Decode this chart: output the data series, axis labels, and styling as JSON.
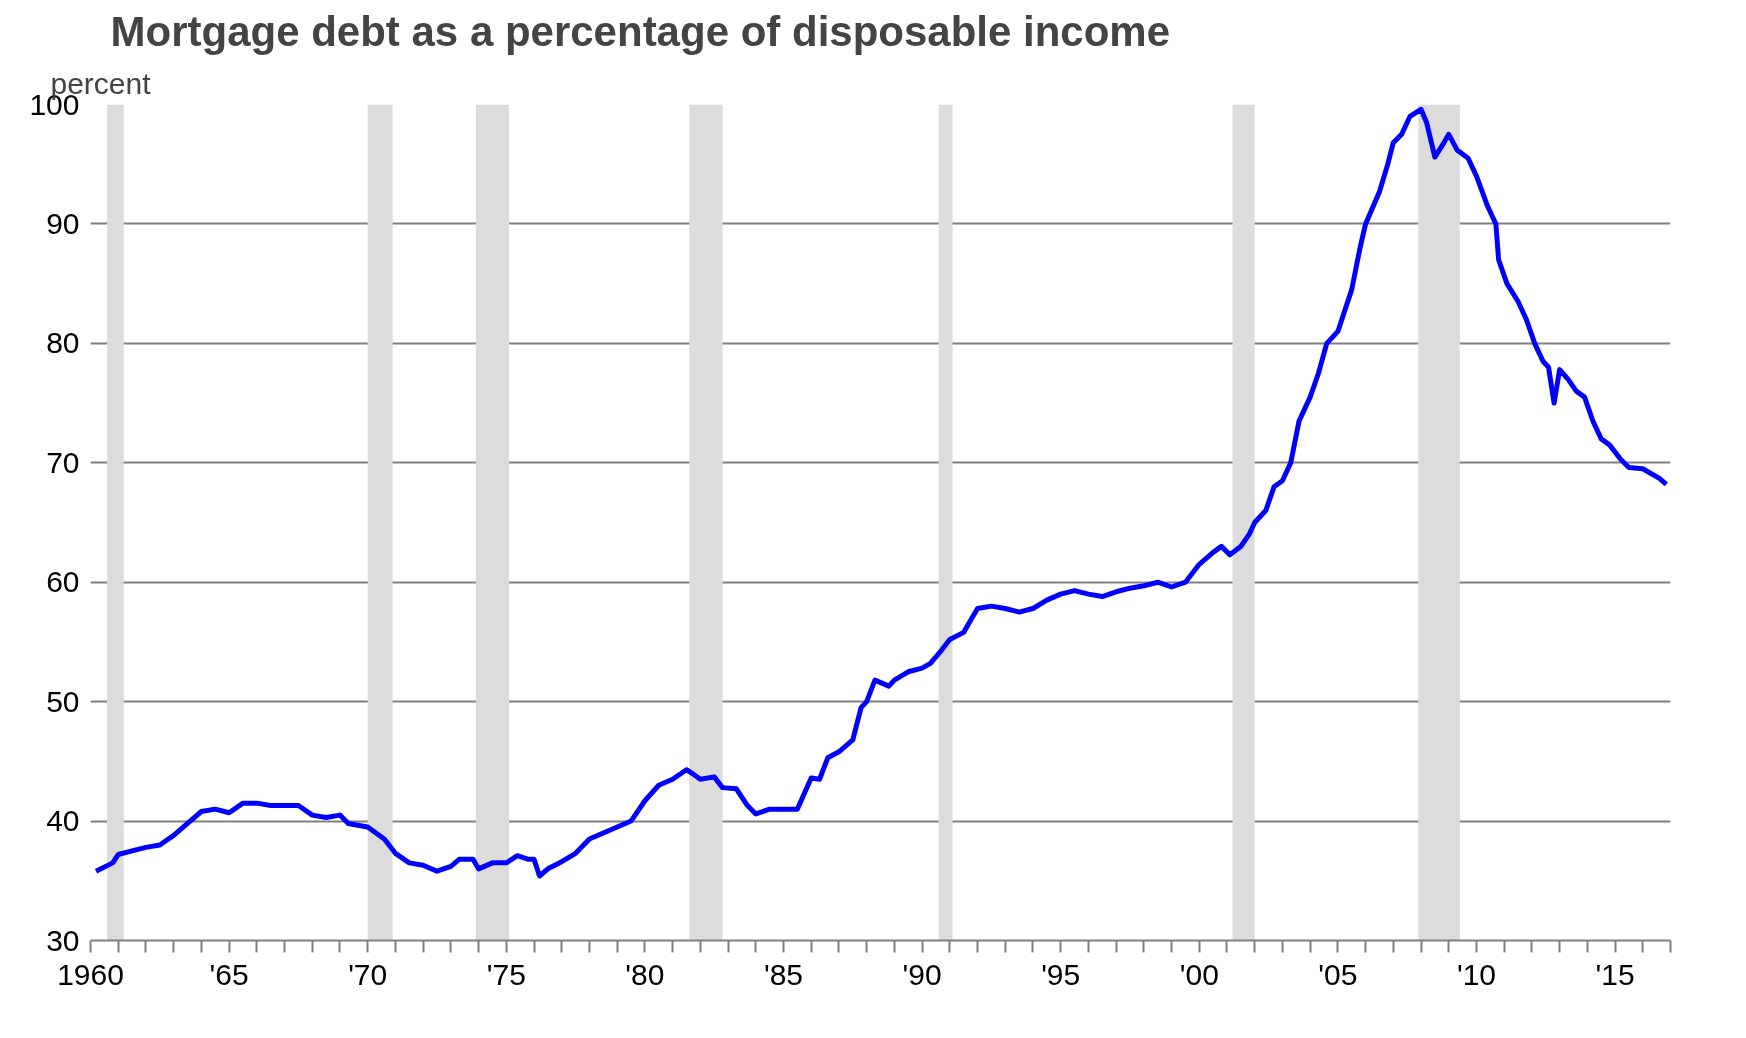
{
  "chart_data": {
    "type": "line",
    "title": "Mortgage debt as a percentage of disposable income",
    "ylabel": "percent",
    "xlim": [
      1960,
      2017
    ],
    "ylim": [
      30,
      100
    ],
    "xticks": [
      {
        "value": 1960,
        "label": "1960"
      },
      {
        "value": 1961,
        "label": null
      },
      {
        "value": 1962,
        "label": null
      },
      {
        "value": 1963,
        "label": null
      },
      {
        "value": 1964,
        "label": null
      },
      {
        "value": 1965,
        "label": "'65"
      },
      {
        "value": 1966,
        "label": null
      },
      {
        "value": 1967,
        "label": null
      },
      {
        "value": 1968,
        "label": null
      },
      {
        "value": 1969,
        "label": null
      },
      {
        "value": 1970,
        "label": "'70"
      },
      {
        "value": 1971,
        "label": null
      },
      {
        "value": 1972,
        "label": null
      },
      {
        "value": 1973,
        "label": null
      },
      {
        "value": 1974,
        "label": null
      },
      {
        "value": 1975,
        "label": "'75"
      },
      {
        "value": 1976,
        "label": null
      },
      {
        "value": 1977,
        "label": null
      },
      {
        "value": 1978,
        "label": null
      },
      {
        "value": 1979,
        "label": null
      },
      {
        "value": 1980,
        "label": "'80"
      },
      {
        "value": 1981,
        "label": null
      },
      {
        "value": 1982,
        "label": null
      },
      {
        "value": 1983,
        "label": null
      },
      {
        "value": 1984,
        "label": null
      },
      {
        "value": 1985,
        "label": "'85"
      },
      {
        "value": 1986,
        "label": null
      },
      {
        "value": 1987,
        "label": null
      },
      {
        "value": 1988,
        "label": null
      },
      {
        "value": 1989,
        "label": null
      },
      {
        "value": 1990,
        "label": "'90"
      },
      {
        "value": 1991,
        "label": null
      },
      {
        "value": 1992,
        "label": null
      },
      {
        "value": 1993,
        "label": null
      },
      {
        "value": 1994,
        "label": null
      },
      {
        "value": 1995,
        "label": "'95"
      },
      {
        "value": 1996,
        "label": null
      },
      {
        "value": 1997,
        "label": null
      },
      {
        "value": 1998,
        "label": null
      },
      {
        "value": 1999,
        "label": null
      },
      {
        "value": 2000,
        "label": "'00"
      },
      {
        "value": 2001,
        "label": null
      },
      {
        "value": 2002,
        "label": null
      },
      {
        "value": 2003,
        "label": null
      },
      {
        "value": 2004,
        "label": null
      },
      {
        "value": 2005,
        "label": "'05"
      },
      {
        "value": 2006,
        "label": null
      },
      {
        "value": 2007,
        "label": null
      },
      {
        "value": 2008,
        "label": null
      },
      {
        "value": 2009,
        "label": null
      },
      {
        "value": 2010,
        "label": "'10"
      },
      {
        "value": 2011,
        "label": null
      },
      {
        "value": 2012,
        "label": null
      },
      {
        "value": 2013,
        "label": null
      },
      {
        "value": 2014,
        "label": null
      },
      {
        "value": 2015,
        "label": "'15"
      },
      {
        "value": 2016,
        "label": null
      },
      {
        "value": 2017,
        "label": null
      }
    ],
    "yticks": [
      30,
      40,
      50,
      60,
      70,
      80,
      90,
      100
    ],
    "grid": "y",
    "marker": "none",
    "line_style": "solid",
    "bands": [
      {
        "axis": "x",
        "from": 1960.6,
        "to": 1961.2,
        "label": null,
        "color": "#dcdcdc"
      },
      {
        "axis": "x",
        "from": 1970.0,
        "to": 1970.9,
        "label": null,
        "color": "#dcdcdc"
      },
      {
        "axis": "x",
        "from": 1973.9,
        "to": 1975.1,
        "label": null,
        "color": "#dcdcdc"
      },
      {
        "axis": "x",
        "from": 1981.6,
        "to": 1982.8,
        "label": null,
        "color": "#dcdcdc"
      },
      {
        "axis": "x",
        "from": 1990.6,
        "to": 1991.1,
        "label": null,
        "color": "#dcdcdc"
      },
      {
        "axis": "x",
        "from": 2001.2,
        "to": 2002.0,
        "label": null,
        "color": "#dcdcdc"
      },
      {
        "axis": "x",
        "from": 2007.9,
        "to": 2009.4,
        "label": null,
        "color": "#dcdcdc"
      }
    ],
    "series": [
      {
        "color": "#0000ff",
        "x": [
          1960.2,
          1960.8,
          1961.0,
          1961.5,
          1962,
          1962.5,
          1963,
          1963.5,
          1964,
          1964.5,
          1965,
          1965.5,
          1966,
          1966.5,
          1967,
          1967.5,
          1968,
          1968.5,
          1969,
          1969.3,
          1970,
          1970.6,
          1971,
          1971.5,
          1972,
          1972.5,
          1973,
          1973.3,
          1973.8,
          1974,
          1974.5,
          1975,
          1975.4,
          1975.8,
          1976,
          1976.2,
          1976.5,
          1977,
          1977.5,
          1978,
          1978.5,
          1979,
          1979.5,
          1980,
          1980.5,
          1981,
          1981.5,
          1981.7,
          1982,
          1982.5,
          1982.8,
          1983.3,
          1983.7,
          1984,
          1984.5,
          1985,
          1985.5,
          1986,
          1986.3,
          1986.6,
          1987,
          1987.5,
          1987.8,
          1988,
          1988.3,
          1988.8,
          1989,
          1989.5,
          1990,
          1990.3,
          1990.7,
          1991,
          1991.5,
          1991.8,
          1992,
          1992.5,
          1993,
          1993.5,
          1994,
          1994.5,
          1995,
          1995.5,
          1996,
          1996.5,
          1997,
          1997.5,
          1998,
          1998.5,
          1999,
          1999.5,
          2000,
          2000.5,
          2000.8,
          2001.1,
          2001.5,
          2001.8,
          2002,
          2002.4,
          2002.7,
          2003,
          2003.3,
          2003.6,
          2004,
          2004.3,
          2004.6,
          2005,
          2005.5,
          2005.8,
          2006,
          2006.5,
          2006.8,
          2007,
          2007.3,
          2007.6,
          2008,
          2008.2,
          2008.5,
          2008.8,
          2009,
          2009.3,
          2009.7,
          2010,
          2010.4,
          2010.7,
          2010.8,
          2011.1,
          2011.5,
          2011.8,
          2012.1,
          2012.4,
          2012.6,
          2012.8,
          2013,
          2013.3,
          2013.6,
          2013.9,
          2014.2,
          2014.5,
          2014.8,
          2015.2,
          2015.5,
          2016,
          2016.6,
          2016.85
        ],
        "values": [
          35.8,
          36.5,
          37.2,
          37.5,
          37.8,
          38.0,
          38.8,
          39.8,
          40.8,
          41.0,
          40.7,
          41.5,
          41.5,
          41.3,
          41.3,
          41.3,
          40.5,
          40.3,
          40.5,
          39.8,
          39.5,
          38.5,
          37.3,
          36.5,
          36.3,
          35.8,
          36.2,
          36.8,
          36.8,
          36.0,
          36.5,
          36.5,
          37.1,
          36.8,
          36.8,
          35.4,
          36.0,
          36.6,
          37.3,
          38.5,
          39.0,
          39.5,
          40.0,
          41.7,
          43.0,
          43.5,
          44.3,
          44.0,
          43.5,
          43.7,
          42.8,
          42.7,
          41.3,
          40.6,
          41.0,
          41.0,
          41.0,
          43.6,
          43.5,
          45.3,
          45.8,
          46.8,
          49.5,
          50.0,
          51.8,
          51.3,
          51.8,
          52.5,
          52.8,
          53.2,
          54.3,
          55.2,
          55.8,
          57.0,
          57.8,
          58.0,
          57.8,
          57.5,
          57.8,
          58.5,
          59.0,
          59.3,
          59.0,
          58.8,
          59.2,
          59.5,
          59.7,
          60.0,
          59.6,
          60.0,
          61.5,
          62.5,
          63.0,
          62.3,
          63.0,
          64.0,
          65.0,
          66.0,
          68.0,
          68.5,
          70.0,
          73.5,
          75.5,
          77.5,
          80.0,
          81.0,
          84.5,
          88.0,
          90.0,
          92.7,
          95.0,
          96.8,
          97.5,
          99.0,
          99.6,
          98.5,
          95.6,
          96.7,
          97.5,
          96.2,
          95.5,
          94.0,
          91.5,
          90.0,
          87.0,
          85.0,
          83.5,
          82.0,
          80.0,
          78.5,
          78.0,
          75.0,
          77.8,
          77.0,
          76.0,
          75.5,
          73.5,
          72.0,
          71.5,
          70.3,
          69.6,
          69.5,
          68.7,
          68.2
        ]
      }
    ]
  }
}
